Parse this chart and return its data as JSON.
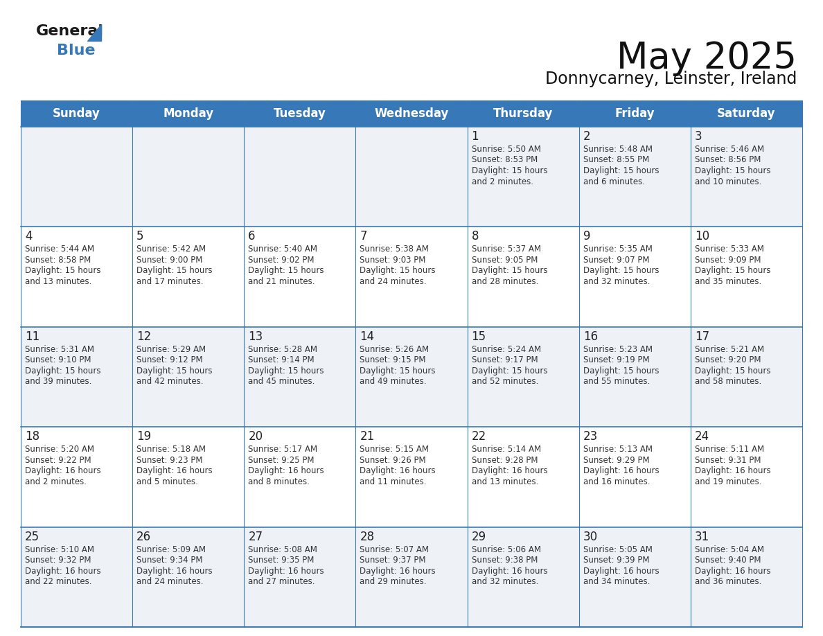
{
  "title": "May 2025",
  "subtitle": "Donnycarney, Leinster, Ireland",
  "days_of_week": [
    "Sunday",
    "Monday",
    "Tuesday",
    "Wednesday",
    "Thursday",
    "Friday",
    "Saturday"
  ],
  "header_bg": "#3778b8",
  "header_text": "#ffffff",
  "cell_bg_light": "#eef2f7",
  "cell_bg_white": "#ffffff",
  "cell_border": "#3778b8",
  "day_number_color": "#222222",
  "text_color": "#333333",
  "title_color": "#111111",
  "subtitle_color": "#111111",
  "calendar_data": [
    [
      null,
      null,
      null,
      null,
      {
        "day": 1,
        "sunrise": "5:50 AM",
        "sunset": "8:53 PM",
        "daylight": "15 hours and 2 minutes."
      },
      {
        "day": 2,
        "sunrise": "5:48 AM",
        "sunset": "8:55 PM",
        "daylight": "15 hours and 6 minutes."
      },
      {
        "day": 3,
        "sunrise": "5:46 AM",
        "sunset": "8:56 PM",
        "daylight": "15 hours and 10 minutes."
      }
    ],
    [
      {
        "day": 4,
        "sunrise": "5:44 AM",
        "sunset": "8:58 PM",
        "daylight": "15 hours and 13 minutes."
      },
      {
        "day": 5,
        "sunrise": "5:42 AM",
        "sunset": "9:00 PM",
        "daylight": "15 hours and 17 minutes."
      },
      {
        "day": 6,
        "sunrise": "5:40 AM",
        "sunset": "9:02 PM",
        "daylight": "15 hours and 21 minutes."
      },
      {
        "day": 7,
        "sunrise": "5:38 AM",
        "sunset": "9:03 PM",
        "daylight": "15 hours and 24 minutes."
      },
      {
        "day": 8,
        "sunrise": "5:37 AM",
        "sunset": "9:05 PM",
        "daylight": "15 hours and 28 minutes."
      },
      {
        "day": 9,
        "sunrise": "5:35 AM",
        "sunset": "9:07 PM",
        "daylight": "15 hours and 32 minutes."
      },
      {
        "day": 10,
        "sunrise": "5:33 AM",
        "sunset": "9:09 PM",
        "daylight": "15 hours and 35 minutes."
      }
    ],
    [
      {
        "day": 11,
        "sunrise": "5:31 AM",
        "sunset": "9:10 PM",
        "daylight": "15 hours and 39 minutes."
      },
      {
        "day": 12,
        "sunrise": "5:29 AM",
        "sunset": "9:12 PM",
        "daylight": "15 hours and 42 minutes."
      },
      {
        "day": 13,
        "sunrise": "5:28 AM",
        "sunset": "9:14 PM",
        "daylight": "15 hours and 45 minutes."
      },
      {
        "day": 14,
        "sunrise": "5:26 AM",
        "sunset": "9:15 PM",
        "daylight": "15 hours and 49 minutes."
      },
      {
        "day": 15,
        "sunrise": "5:24 AM",
        "sunset": "9:17 PM",
        "daylight": "15 hours and 52 minutes."
      },
      {
        "day": 16,
        "sunrise": "5:23 AM",
        "sunset": "9:19 PM",
        "daylight": "15 hours and 55 minutes."
      },
      {
        "day": 17,
        "sunrise": "5:21 AM",
        "sunset": "9:20 PM",
        "daylight": "15 hours and 58 minutes."
      }
    ],
    [
      {
        "day": 18,
        "sunrise": "5:20 AM",
        "sunset": "9:22 PM",
        "daylight": "16 hours and 2 minutes."
      },
      {
        "day": 19,
        "sunrise": "5:18 AM",
        "sunset": "9:23 PM",
        "daylight": "16 hours and 5 minutes."
      },
      {
        "day": 20,
        "sunrise": "5:17 AM",
        "sunset": "9:25 PM",
        "daylight": "16 hours and 8 minutes."
      },
      {
        "day": 21,
        "sunrise": "5:15 AM",
        "sunset": "9:26 PM",
        "daylight": "16 hours and 11 minutes."
      },
      {
        "day": 22,
        "sunrise": "5:14 AM",
        "sunset": "9:28 PM",
        "daylight": "16 hours and 13 minutes."
      },
      {
        "day": 23,
        "sunrise": "5:13 AM",
        "sunset": "9:29 PM",
        "daylight": "16 hours and 16 minutes."
      },
      {
        "day": 24,
        "sunrise": "5:11 AM",
        "sunset": "9:31 PM",
        "daylight": "16 hours and 19 minutes."
      }
    ],
    [
      {
        "day": 25,
        "sunrise": "5:10 AM",
        "sunset": "9:32 PM",
        "daylight": "16 hours and 22 minutes."
      },
      {
        "day": 26,
        "sunrise": "5:09 AM",
        "sunset": "9:34 PM",
        "daylight": "16 hours and 24 minutes."
      },
      {
        "day": 27,
        "sunrise": "5:08 AM",
        "sunset": "9:35 PM",
        "daylight": "16 hours and 27 minutes."
      },
      {
        "day": 28,
        "sunrise": "5:07 AM",
        "sunset": "9:37 PM",
        "daylight": "16 hours and 29 minutes."
      },
      {
        "day": 29,
        "sunrise": "5:06 AM",
        "sunset": "9:38 PM",
        "daylight": "16 hours and 32 minutes."
      },
      {
        "day": 30,
        "sunrise": "5:05 AM",
        "sunset": "9:39 PM",
        "daylight": "16 hours and 34 minutes."
      },
      {
        "day": 31,
        "sunrise": "5:04 AM",
        "sunset": "9:40 PM",
        "daylight": "16 hours and 36 minutes."
      }
    ]
  ]
}
